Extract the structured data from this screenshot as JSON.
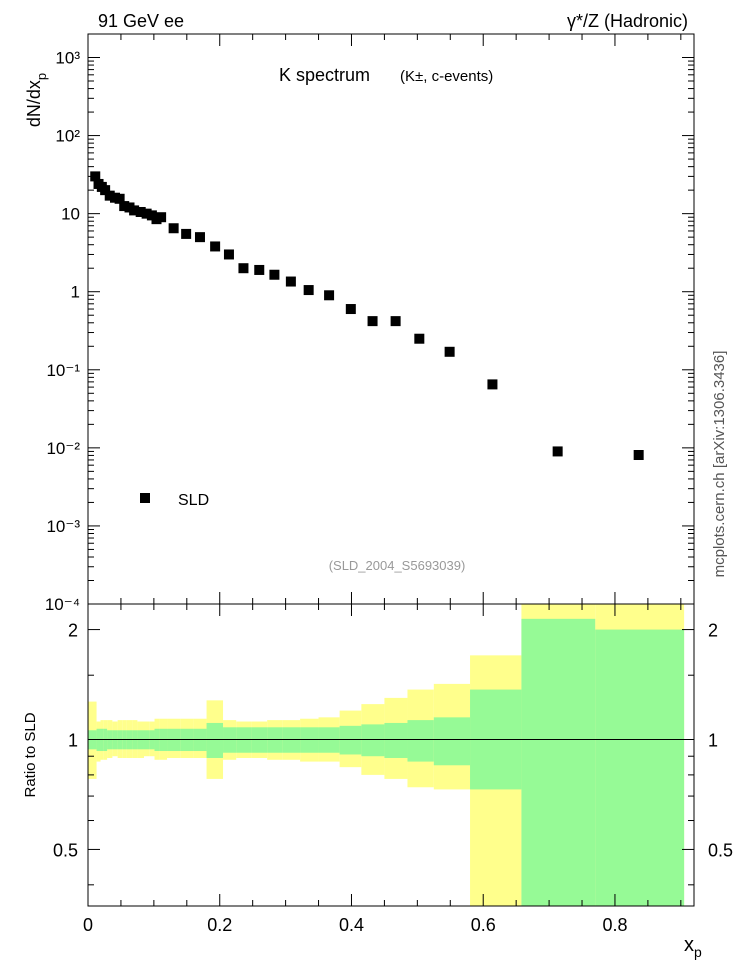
{
  "header": {
    "left": "91 GeV ee",
    "right": "γ*/Z (Hadronic)"
  },
  "side_label": "mcplots.cern.ch [arXiv:1306.3436]",
  "colors": {
    "outer_band": "#ffff8c",
    "inner_band": "#96fa96",
    "marker": "#000000",
    "watermark": "#999999"
  },
  "chart_data": [
    {
      "type": "scatter",
      "title": "K spectrum",
      "title_suffix": "(K±, c-events)",
      "ylabel": "dN/dx_p",
      "yscale": "log",
      "xlim": [
        0,
        0.92
      ],
      "ylim": [
        0.0001,
        2000
      ],
      "ytick_labels": [
        "10⁻⁴",
        "10⁻³",
        "10⁻²",
        "10⁻¹",
        "1",
        "10",
        "10²",
        "10³"
      ],
      "legend": {
        "entries": [
          "SLD"
        ],
        "placement": "bottom-left"
      },
      "watermark": "(SLD_2004_S5693039)",
      "grid": false,
      "series": [
        {
          "name": "SLD",
          "x": [
            0.011,
            0.016,
            0.021,
            0.026,
            0.033,
            0.041,
            0.048,
            0.055,
            0.063,
            0.07,
            0.08,
            0.089,
            0.097,
            0.104,
            0.111,
            0.13,
            0.149,
            0.17,
            0.193,
            0.214,
            0.236,
            0.26,
            0.283,
            0.308,
            0.335,
            0.366,
            0.399,
            0.432,
            0.467,
            0.503,
            0.549,
            0.614,
            0.713,
            0.836
          ],
          "y": [
            30.0,
            24.0,
            22.0,
            20.0,
            17.0,
            16.0,
            15.5,
            12.5,
            12.0,
            11.0,
            10.5,
            10.0,
            9.5,
            8.5,
            9.0,
            6.5,
            5.5,
            5.0,
            3.8,
            3.0,
            2.0,
            1.9,
            1.65,
            1.35,
            1.05,
            0.9,
            0.6,
            0.42,
            0.42,
            0.25,
            0.17,
            0.065,
            0.009,
            0.0081
          ]
        }
      ]
    },
    {
      "type": "area",
      "ylabel": "Ratio to SLD",
      "xlabel": "x_p",
      "xlim": [
        0,
        0.92
      ],
      "ylim": [
        0.35,
        2.35
      ],
      "x_tick_labels": [
        "0",
        "0.2",
        "0.4",
        "0.6",
        "0.8"
      ],
      "y_tick_labels": [
        "0.5",
        "1",
        "2"
      ],
      "reference_line": 1,
      "bands": {
        "edges": [
          0.0,
          0.013,
          0.019,
          0.024,
          0.029,
          0.037,
          0.045,
          0.052,
          0.059,
          0.067,
          0.075,
          0.085,
          0.093,
          0.101,
          0.108,
          0.12,
          0.14,
          0.16,
          0.18,
          0.205,
          0.225,
          0.248,
          0.272,
          0.295,
          0.322,
          0.35,
          0.382,
          0.415,
          0.45,
          0.485,
          0.525,
          0.58,
          0.658,
          0.77,
          0.905
        ],
        "inner_lo": [
          0.94,
          0.93,
          0.93,
          0.93,
          0.94,
          0.94,
          0.94,
          0.94,
          0.94,
          0.94,
          0.94,
          0.94,
          0.94,
          0.93,
          0.93,
          0.93,
          0.93,
          0.93,
          0.89,
          0.92,
          0.92,
          0.92,
          0.92,
          0.92,
          0.92,
          0.92,
          0.91,
          0.9,
          0.89,
          0.87,
          0.85,
          0.73,
          0.35,
          0.35
        ],
        "inner_hi": [
          1.06,
          1.07,
          1.07,
          1.07,
          1.06,
          1.06,
          1.06,
          1.06,
          1.06,
          1.06,
          1.06,
          1.06,
          1.06,
          1.07,
          1.07,
          1.07,
          1.07,
          1.07,
          1.11,
          1.08,
          1.08,
          1.08,
          1.08,
          1.08,
          1.08,
          1.08,
          1.09,
          1.1,
          1.11,
          1.13,
          1.15,
          1.37,
          2.14,
          2.0
        ],
        "outer_lo": [
          0.78,
          0.87,
          0.88,
          0.88,
          0.89,
          0.9,
          0.89,
          0.89,
          0.89,
          0.89,
          0.89,
          0.9,
          0.9,
          0.88,
          0.88,
          0.89,
          0.89,
          0.89,
          0.78,
          0.88,
          0.89,
          0.89,
          0.88,
          0.88,
          0.87,
          0.87,
          0.84,
          0.8,
          0.78,
          0.74,
          0.73,
          0.35,
          0.35,
          0.35
        ],
        "outer_hi": [
          1.27,
          1.12,
          1.13,
          1.13,
          1.13,
          1.12,
          1.13,
          1.13,
          1.13,
          1.13,
          1.12,
          1.12,
          1.12,
          1.14,
          1.14,
          1.14,
          1.14,
          1.14,
          1.28,
          1.13,
          1.12,
          1.12,
          1.13,
          1.13,
          1.14,
          1.15,
          1.2,
          1.25,
          1.3,
          1.37,
          1.42,
          1.7,
          2.35,
          2.35
        ]
      }
    }
  ]
}
